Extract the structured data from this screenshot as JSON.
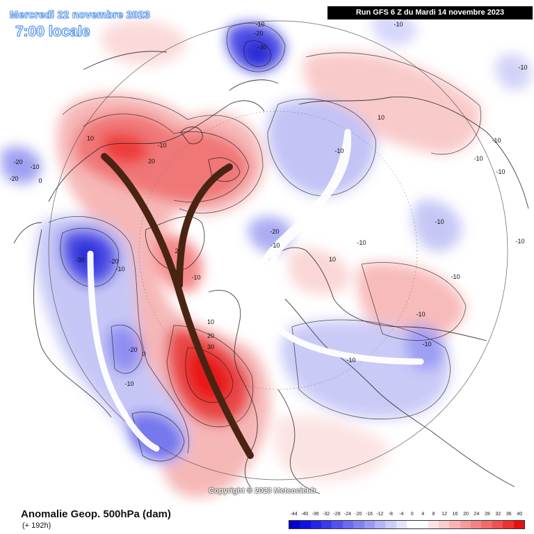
{
  "header": {
    "date": "Mercredi 22 novembre 2023",
    "time": "7:00 locale",
    "run": "Run GFS 6 Z du Mardi 14 novembre 2023"
  },
  "map": {
    "contour_labels": [
      "-10",
      "-20",
      "-30",
      "-10",
      "-10",
      "10",
      "-10",
      "-20",
      "-10",
      "10",
      "-10",
      "20",
      "-10",
      "-20",
      "-10",
      "-30",
      "-20",
      "-10",
      "2",
      "-10",
      "10",
      "-10",
      "-20",
      "-10",
      "10",
      "-10",
      "-10",
      "-10",
      "20",
      "30",
      "-10",
      "-20",
      "0",
      "-10",
      "0",
      "-10",
      "-10",
      "-10"
    ],
    "colors": {
      "positive": "#e8111a",
      "negative": "#1f1fd6",
      "trough_axis": "#ffffff",
      "ridge_axis": "#4a2413"
    }
  },
  "copyright": "Copyright © 2023 Meteociel.fr",
  "footer": {
    "title": "Anomalie Geop. 500hPa (dam)",
    "subtitle": "(+ 192h)"
  },
  "legend": {
    "labels": [
      "-44",
      "-40",
      "-36",
      "-32",
      "-28",
      "-24",
      "-20",
      "-16",
      "-12",
      "-8",
      "-4",
      "0",
      "4",
      "8",
      "12",
      "16",
      "20",
      "24",
      "28",
      "32",
      "36",
      "40"
    ],
    "colors": [
      "#0000d0",
      "#1010e0",
      "#2424ea",
      "#3a3aee",
      "#5252f0",
      "#6a6af2",
      "#8282f4",
      "#9a9af6",
      "#b4b4f8",
      "#ccccfa",
      "#e4e4fd",
      "#ffffff",
      "#ffffff",
      "#fde4e4",
      "#facccc",
      "#f8b4b4",
      "#f69a9a",
      "#f48282",
      "#f26a6a",
      "#f05050",
      "#ee3030",
      "#e81010"
    ]
  }
}
